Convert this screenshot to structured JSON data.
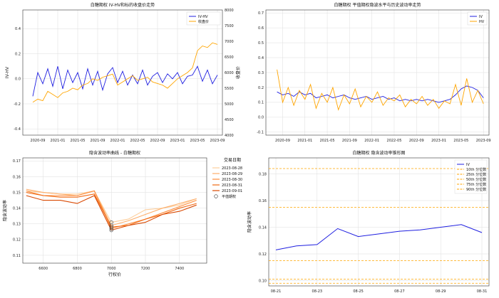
{
  "chart_data": [
    {
      "type": "line",
      "title": "白糖期权 IV-HV和标的收盘价走势",
      "ylabel": "IV-HV",
      "y2label": "收盘价",
      "x_ticks": [
        "2020-09",
        "2021-01",
        "2021-05",
        "2021-09",
        "2022-01",
        "2022-05",
        "2022-09",
        "2023-01",
        "2023-05",
        "2023-09"
      ],
      "ylim": [
        -0.45,
        0.55
      ],
      "y_ticks": [
        -0.4,
        -0.2,
        0.0,
        0.2,
        0.4
      ],
      "y2lim": [
        4000,
        8000
      ],
      "y2_ticks": [
        4000,
        4500,
        5000,
        5500,
        6000,
        6500,
        7000,
        7500,
        8000
      ],
      "grid": true,
      "legend_position": "top-right",
      "series": [
        {
          "name": "IV-HV",
          "color": "#1f1fe0",
          "axis": "left",
          "x": [
            "2020-08",
            "2020-09",
            "2020-10",
            "2020-11",
            "2020-12",
            "2021-01",
            "2021-02",
            "2021-03",
            "2021-04",
            "2021-05",
            "2021-06",
            "2021-07",
            "2021-08",
            "2021-09",
            "2021-10",
            "2021-11",
            "2021-12",
            "2022-01",
            "2022-02",
            "2022-03",
            "2022-04",
            "2022-05",
            "2022-06",
            "2022-07",
            "2022-08",
            "2022-09",
            "2022-10",
            "2022-11",
            "2022-12",
            "2023-01",
            "2023-02",
            "2023-03",
            "2023-04",
            "2023-05",
            "2023-06",
            "2023-07",
            "2023-08",
            "2023-09"
          ],
          "y": [
            -0.14,
            0.05,
            -0.04,
            0.08,
            -0.06,
            0.1,
            -0.08,
            0.07,
            -0.03,
            0.05,
            -0.08,
            0.08,
            -0.05,
            0.06,
            -0.09,
            0.04,
            0.09,
            -0.03,
            0.06,
            -0.05,
            0.03,
            -0.04,
            0.07,
            -0.05,
            0.02,
            0.05,
            -0.03,
            0.04,
            0.0,
            0.05,
            -0.04,
            0.02,
            0.03,
            0.1,
            -0.02,
            0.07,
            -0.04,
            0.03
          ]
        },
        {
          "name": "收盘价",
          "color": "#ffa500",
          "axis": "right",
          "x": [
            "2020-08",
            "2020-09",
            "2020-10",
            "2020-11",
            "2020-12",
            "2021-01",
            "2021-02",
            "2021-03",
            "2021-04",
            "2021-05",
            "2021-06",
            "2021-07",
            "2021-08",
            "2021-09",
            "2021-10",
            "2021-11",
            "2021-12",
            "2022-01",
            "2022-02",
            "2022-03",
            "2022-04",
            "2022-05",
            "2022-06",
            "2022-07",
            "2022-08",
            "2022-09",
            "2022-10",
            "2022-11",
            "2022-12",
            "2023-01",
            "2023-02",
            "2023-03",
            "2023-04",
            "2023-05",
            "2023-06",
            "2023-07",
            "2023-08",
            "2023-09"
          ],
          "y": [
            5050,
            5150,
            5100,
            5400,
            5300,
            5200,
            5350,
            5400,
            5500,
            5450,
            5600,
            5650,
            5800,
            5750,
            5850,
            5900,
            5950,
            5600,
            5700,
            5800,
            5900,
            5750,
            5800,
            5850,
            5700,
            5650,
            5600,
            5500,
            5650,
            5800,
            5900,
            6000,
            6150,
            6700,
            6850,
            6800,
            6950,
            6900
          ]
        }
      ]
    },
    {
      "type": "line",
      "title": "白糖期权 平值期权隐波水平与历史波动率走势",
      "x_ticks": [
        "2020-09",
        "2021-01",
        "2021-05",
        "2021-09",
        "2022-01",
        "2022-05",
        "2022-09",
        "2023-01",
        "2023-05",
        "2023-09"
      ],
      "ylim": [
        -0.12,
        0.72
      ],
      "y_ticks": [
        -0.1,
        0.0,
        0.1,
        0.2,
        0.3,
        0.4,
        0.5,
        0.6,
        0.7
      ],
      "grid": true,
      "legend_position": "top-right",
      "series": [
        {
          "name": "IV",
          "color": "#1f1fe0",
          "x": [
            "2020-08",
            "2020-09",
            "2020-10",
            "2020-11",
            "2020-12",
            "2021-01",
            "2021-02",
            "2021-03",
            "2021-04",
            "2021-05",
            "2021-06",
            "2021-07",
            "2021-08",
            "2021-09",
            "2021-10",
            "2021-11",
            "2021-12",
            "2022-01",
            "2022-02",
            "2022-03",
            "2022-04",
            "2022-05",
            "2022-06",
            "2022-07",
            "2022-08",
            "2022-09",
            "2022-10",
            "2022-11",
            "2022-12",
            "2023-01",
            "2023-02",
            "2023-03",
            "2023-04",
            "2023-05",
            "2023-06",
            "2023-07",
            "2023-08",
            "2023-09"
          ],
          "y": [
            0.17,
            0.15,
            0.16,
            0.14,
            0.17,
            0.15,
            0.16,
            0.13,
            0.14,
            0.15,
            0.13,
            0.14,
            0.15,
            0.13,
            0.12,
            0.13,
            0.14,
            0.12,
            0.13,
            0.14,
            0.12,
            0.13,
            0.11,
            0.12,
            0.11,
            0.12,
            0.11,
            0.12,
            0.11,
            0.1,
            0.11,
            0.12,
            0.15,
            0.19,
            0.21,
            0.2,
            0.18,
            0.13
          ]
        },
        {
          "name": "HV",
          "color": "#ffa500",
          "x": [
            "2020-08",
            "2020-09",
            "2020-10",
            "2020-11",
            "2020-12",
            "2021-01",
            "2021-02",
            "2021-03",
            "2021-04",
            "2021-05",
            "2021-06",
            "2021-07",
            "2021-08",
            "2021-09",
            "2021-10",
            "2021-11",
            "2021-12",
            "2022-01",
            "2022-02",
            "2022-03",
            "2022-04",
            "2022-05",
            "2022-06",
            "2022-07",
            "2022-08",
            "2022-09",
            "2022-10",
            "2022-11",
            "2022-12",
            "2023-01",
            "2023-02",
            "2023-03",
            "2023-04",
            "2023-05",
            "2023-06",
            "2023-07",
            "2023-08",
            "2023-09"
          ],
          "y": [
            0.32,
            0.1,
            0.2,
            0.08,
            0.18,
            0.12,
            0.22,
            0.06,
            0.16,
            0.1,
            0.2,
            0.05,
            0.15,
            0.09,
            0.19,
            0.07,
            0.14,
            0.1,
            0.17,
            0.08,
            0.13,
            0.11,
            0.15,
            0.07,
            0.12,
            0.09,
            0.14,
            0.08,
            0.12,
            0.06,
            0.11,
            0.09,
            0.22,
            0.08,
            0.26,
            0.1,
            0.18,
            0.09
          ]
        }
      ]
    },
    {
      "type": "line",
      "title": "隐含波动率曲线 - 白糖期权",
      "xlabel": "行权价",
      "ylabel": "隐含波动率",
      "legend_title": "交易日期",
      "xlim": [
        6480,
        7560
      ],
      "x_ticks": [
        6600,
        6800,
        7000,
        7200,
        7400
      ],
      "ylim": [
        0.105,
        0.172
      ],
      "y_ticks": [
        0.11,
        0.12,
        0.13,
        0.14,
        0.15,
        0.16,
        0.17
      ],
      "grid": true,
      "legend_position": "top-right",
      "atm_label": "平值期权",
      "series": [
        {
          "name": "2023-08-28",
          "color": "#fdcf9d",
          "x": [
            6500,
            6600,
            6700,
            6800,
            6900,
            7000,
            7100,
            7200,
            7300,
            7400,
            7500
          ],
          "y": [
            0.151,
            0.15,
            0.149,
            0.149,
            0.151,
            0.131,
            0.133,
            0.139,
            0.14,
            0.142,
            0.146
          ]
        },
        {
          "name": "2023-08-29",
          "color": "#fdae6b",
          "x": [
            6500,
            6600,
            6700,
            6800,
            6900,
            7000,
            7100,
            7200,
            7300,
            7400,
            7500
          ],
          "y": [
            0.152,
            0.15,
            0.149,
            0.148,
            0.151,
            0.129,
            0.132,
            0.136,
            0.14,
            0.143,
            0.146
          ]
        },
        {
          "name": "2023-08-30",
          "color": "#fd8d3c",
          "x": [
            6500,
            6600,
            6700,
            6800,
            6900,
            7000,
            7100,
            7200,
            7300,
            7400,
            7500
          ],
          "y": [
            0.151,
            0.148,
            0.148,
            0.148,
            0.151,
            0.127,
            0.13,
            0.133,
            0.137,
            0.141,
            0.145
          ]
        },
        {
          "name": "2023-08-31",
          "color": "#f16913",
          "x": [
            6500,
            6600,
            6700,
            6800,
            6900,
            7000,
            7100,
            7200,
            7300,
            7400,
            7500
          ],
          "y": [
            0.15,
            0.148,
            0.147,
            0.147,
            0.149,
            0.128,
            0.129,
            0.133,
            0.136,
            0.14,
            0.143
          ]
        },
        {
          "name": "2023-09-01",
          "color": "#d94801",
          "x": [
            6500,
            6600,
            6700,
            6800,
            6900,
            7000,
            7100,
            7200,
            7300,
            7400,
            7500
          ],
          "y": [
            0.148,
            0.145,
            0.145,
            0.143,
            0.148,
            0.126,
            0.129,
            0.131,
            0.136,
            0.138,
            0.142
          ]
        }
      ],
      "atm_points": [
        {
          "x": 7000,
          "y": 0.131
        },
        {
          "x": 7000,
          "y": 0.129
        },
        {
          "x": 7000,
          "y": 0.127
        },
        {
          "x": 7000,
          "y": 0.128
        },
        {
          "x": 7000,
          "y": 0.126
        }
      ]
    },
    {
      "type": "line",
      "title": "白糖期权 隐含波动率锥形图",
      "ylabel": "隐含波动率",
      "x": [
        "08-21",
        "08-22",
        "08-23",
        "08-24",
        "08-25",
        "08-26",
        "08-27",
        "08-28",
        "08-29",
        "08-30",
        "08-31"
      ],
      "x_ticks": [
        "08-21",
        "08-23",
        "08-25",
        "08-27",
        "08-29",
        "08-31"
      ],
      "ylim": [
        0.096,
        0.192
      ],
      "y_ticks": [
        0.1,
        0.12,
        0.14,
        0.16,
        0.18
      ],
      "grid": true,
      "legend_position": "top-right",
      "series": [
        {
          "name": "IV",
          "color": "#1f1fe0",
          "values": [
            0.123,
            0.126,
            0.127,
            0.139,
            0.133,
            0.135,
            0.137,
            0.138,
            0.14,
            0.142,
            0.136
          ]
        }
      ],
      "percentiles": [
        {
          "name": "10th 分位数",
          "value": 0.098,
          "color": "#ffa500"
        },
        {
          "name": "25th 分位数",
          "value": 0.101,
          "color": "#ffa500"
        },
        {
          "name": "50th 分位数",
          "value": 0.115,
          "color": "#ffa500"
        },
        {
          "name": "75th 分位数",
          "value": 0.155,
          "color": "#ffa500"
        },
        {
          "name": "90th 分位数",
          "value": 0.184,
          "color": "#ffa500"
        }
      ]
    }
  ]
}
